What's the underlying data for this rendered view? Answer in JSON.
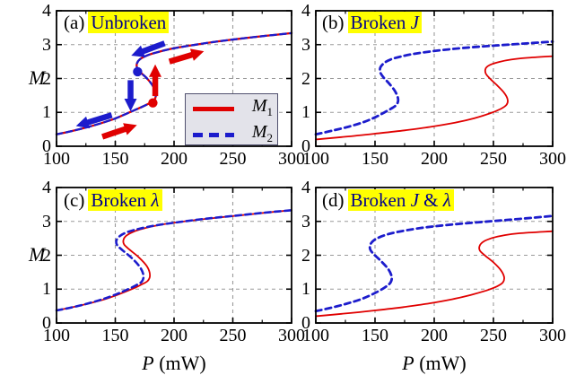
{
  "figure": {
    "bg": "#ffffff",
    "colors": {
      "m1_red": "#e00000",
      "m2_blue": "#1c1ccc",
      "title_text": "#00008b",
      "title_highlight": "#ffff00",
      "grid": "#9a9a9a",
      "axis": "#000000",
      "legend_bg": "#e3e3ea",
      "legend_border": "#50506e"
    },
    "ylabel_text": "M",
    "xlabel_parts": [
      {
        "t": "P",
        "i": true
      },
      {
        "t": " (mW)",
        "i": false
      }
    ],
    "legend": {
      "items": [
        {
          "base": "M",
          "sub": "1",
          "color": "#e00000",
          "style": "solid"
        },
        {
          "base": "M",
          "sub": "2",
          "color": "#1c1ccc",
          "style": "dashed"
        }
      ]
    }
  },
  "chart_data": [
    {
      "id": "a",
      "type": "line",
      "panel_letter": "(a)",
      "title_parts": [
        {
          "t": "Unbroken",
          "i": false
        }
      ],
      "xlim": [
        100,
        300
      ],
      "ylim": [
        0,
        4
      ],
      "xticks": [
        100,
        150,
        200,
        250,
        300
      ],
      "yticks": [
        0,
        1,
        2,
        3,
        4
      ],
      "grid_x": [
        150,
        200,
        250
      ],
      "grid_y": [
        1,
        2,
        3
      ],
      "show_legend": true,
      "series": [
        {
          "name": "M1",
          "color": "#e00000",
          "style": "solid",
          "width": 2.3,
          "points": [
            [
              100,
              0.35
            ],
            [
              112,
              0.44
            ],
            [
              125,
              0.55
            ],
            [
              138,
              0.68
            ],
            [
              150,
              0.82
            ],
            [
              160,
              0.97
            ],
            [
              170,
              1.12
            ],
            [
              178,
              1.25
            ],
            [
              183,
              1.35
            ],
            [
              184.5,
              1.55
            ],
            [
              182,
              1.78
            ],
            [
              177,
              2.0
            ],
            [
              171.5,
              2.18
            ],
            [
              168.5,
              2.32
            ],
            [
              168.5,
              2.45
            ],
            [
              171,
              2.57
            ],
            [
              177,
              2.68
            ],
            [
              186,
              2.78
            ],
            [
              198,
              2.88
            ],
            [
              213,
              2.97
            ],
            [
              232,
              3.07
            ],
            [
              255,
              3.17
            ],
            [
              278,
              3.26
            ],
            [
              300,
              3.34
            ]
          ]
        },
        {
          "name": "M2",
          "color": "#1c1ccc",
          "style": "dashed",
          "width": 2.3,
          "points": [
            [
              100,
              0.35
            ],
            [
              112,
              0.44
            ],
            [
              125,
              0.55
            ],
            [
              138,
              0.68
            ],
            [
              150,
              0.82
            ],
            [
              160,
              0.97
            ],
            [
              170,
              1.12
            ],
            [
              178,
              1.25
            ],
            [
              183,
              1.35
            ],
            [
              184.5,
              1.55
            ],
            [
              182,
              1.78
            ],
            [
              177,
              2.0
            ],
            [
              171.5,
              2.18
            ],
            [
              168.5,
              2.32
            ],
            [
              168.5,
              2.45
            ],
            [
              171,
              2.57
            ],
            [
              177,
              2.68
            ],
            [
              186,
              2.78
            ],
            [
              198,
              2.88
            ],
            [
              213,
              2.97
            ],
            [
              232,
              3.07
            ],
            [
              255,
              3.17
            ],
            [
              278,
              3.26
            ],
            [
              300,
              3.34
            ]
          ]
        }
      ],
      "markers": [
        {
          "color": "#1c1ccc",
          "P": 169,
          "M": 2.2
        },
        {
          "color": "#e00000",
          "P": 182,
          "M": 1.28
        }
      ],
      "arrows": [
        {
          "color": "#1c1ccc",
          "from": [
            192,
            3.04
          ],
          "to": [
            164,
            2.68
          ]
        },
        {
          "color": "#1c1ccc",
          "from": [
            163,
            1.95
          ],
          "to": [
            163,
            1.05
          ]
        },
        {
          "color": "#1c1ccc",
          "from": [
            147,
            0.92
          ],
          "to": [
            117,
            0.6
          ]
        },
        {
          "color": "#e00000",
          "from": [
            139,
            0.28
          ],
          "to": [
            168,
            0.62
          ]
        },
        {
          "color": "#e00000",
          "from": [
            184,
            1.48
          ],
          "to": [
            184,
            2.4
          ]
        },
        {
          "color": "#e00000",
          "from": [
            196,
            2.5
          ],
          "to": [
            225,
            2.8
          ]
        }
      ]
    },
    {
      "id": "b",
      "type": "line",
      "panel_letter": "(b)",
      "title_parts": [
        {
          "t": "Broken ",
          "i": false
        },
        {
          "t": "J",
          "i": true
        }
      ],
      "xlim": [
        100,
        300
      ],
      "ylim": [
        0,
        4
      ],
      "xticks": [
        100,
        150,
        200,
        250,
        300
      ],
      "yticks": [
        0,
        1,
        2,
        3,
        4
      ],
      "grid_x": [
        150,
        200,
        250
      ],
      "grid_y": [
        1,
        2,
        3
      ],
      "show_legend": false,
      "series": [
        {
          "name": "M1",
          "color": "#e00000",
          "style": "solid",
          "width": 1.8,
          "points": [
            [
              100,
              0.2
            ],
            [
              125,
              0.28
            ],
            [
              150,
              0.37
            ],
            [
              175,
              0.47
            ],
            [
              198,
              0.58
            ],
            [
              218,
              0.7
            ],
            [
              234,
              0.83
            ],
            [
              247,
              0.97
            ],
            [
              256,
              1.1
            ],
            [
              261,
              1.22
            ],
            [
              262,
              1.38
            ],
            [
              259,
              1.58
            ],
            [
              253,
              1.8
            ],
            [
              247,
              2.0
            ],
            [
              243.5,
              2.15
            ],
            [
              243.5,
              2.3
            ],
            [
              247,
              2.4
            ],
            [
              255,
              2.49
            ],
            [
              265,
              2.56
            ],
            [
              278,
              2.61
            ],
            [
              300,
              2.66
            ]
          ]
        },
        {
          "name": "M2",
          "color": "#1c1ccc",
          "style": "dashed",
          "width": 2.8,
          "points": [
            [
              100,
              0.35
            ],
            [
              114,
              0.46
            ],
            [
              128,
              0.58
            ],
            [
              141,
              0.72
            ],
            [
              151,
              0.87
            ],
            [
              159,
              1.02
            ],
            [
              165,
              1.14
            ],
            [
              168.5,
              1.24
            ],
            [
              169.5,
              1.4
            ],
            [
              167,
              1.62
            ],
            [
              162,
              1.85
            ],
            [
              157,
              2.04
            ],
            [
              154.5,
              2.18
            ],
            [
              154.5,
              2.32
            ],
            [
              157.5,
              2.45
            ],
            [
              163,
              2.56
            ],
            [
              172,
              2.65
            ],
            [
              185,
              2.74
            ],
            [
              202,
              2.82
            ],
            [
              224,
              2.9
            ],
            [
              250,
              2.97
            ],
            [
              275,
              3.03
            ],
            [
              300,
              3.09
            ]
          ]
        }
      ],
      "markers": [],
      "arrows": []
    },
    {
      "id": "c",
      "type": "line",
      "panel_letter": "(c)",
      "title_parts": [
        {
          "t": "Broken ",
          "i": false
        },
        {
          "t": "λ",
          "i": true
        }
      ],
      "xlim": [
        100,
        300
      ],
      "ylim": [
        0,
        4
      ],
      "xticks": [
        100,
        150,
        200,
        250,
        300
      ],
      "yticks": [
        0,
        1,
        2,
        3,
        4
      ],
      "grid_x": [
        150,
        200,
        250
      ],
      "grid_y": [
        1,
        2,
        3
      ],
      "show_legend": false,
      "series": [
        {
          "name": "M1",
          "color": "#e00000",
          "style": "solid",
          "width": 1.8,
          "points": [
            [
              100,
              0.37
            ],
            [
              114,
              0.47
            ],
            [
              128,
              0.58
            ],
            [
              142,
              0.71
            ],
            [
              154,
              0.86
            ],
            [
              164,
              1.0
            ],
            [
              172,
              1.13
            ],
            [
              177.5,
              1.24
            ],
            [
              179.5,
              1.42
            ],
            [
              177,
              1.67
            ],
            [
              170,
              1.94
            ],
            [
              162,
              2.17
            ],
            [
              157.5,
              2.32
            ],
            [
              157,
              2.46
            ],
            [
              159.5,
              2.58
            ],
            [
              165,
              2.69
            ],
            [
              174,
              2.79
            ],
            [
              187,
              2.89
            ],
            [
              204,
              2.98
            ],
            [
              226,
              3.07
            ],
            [
              251,
              3.16
            ],
            [
              276,
              3.25
            ],
            [
              300,
              3.33
            ]
          ]
        },
        {
          "name": "M2",
          "color": "#1c1ccc",
          "style": "dashed",
          "width": 2.6,
          "points": [
            [
              100,
              0.37
            ],
            [
              113,
              0.46
            ],
            [
              126,
              0.57
            ],
            [
              139,
              0.7
            ],
            [
              151,
              0.85
            ],
            [
              161,
              1.0
            ],
            [
              168,
              1.12
            ],
            [
              172.5,
              1.22
            ],
            [
              174,
              1.4
            ],
            [
              171,
              1.65
            ],
            [
              164,
              1.92
            ],
            [
              156,
              2.15
            ],
            [
              151.5,
              2.3
            ],
            [
              151,
              2.44
            ],
            [
              154,
              2.57
            ],
            [
              160,
              2.68
            ],
            [
              170,
              2.78
            ],
            [
              184,
              2.88
            ],
            [
              202,
              2.97
            ],
            [
              225,
              3.07
            ],
            [
              250,
              3.16
            ],
            [
              275,
              3.25
            ],
            [
              300,
              3.33
            ]
          ]
        }
      ],
      "markers": [],
      "arrows": []
    },
    {
      "id": "d",
      "type": "line",
      "panel_letter": "(d)",
      "title_parts": [
        {
          "t": "Broken ",
          "i": false
        },
        {
          "t": "J",
          "i": true
        },
        {
          "t": " & ",
          "i": false
        },
        {
          "t": "λ",
          "i": true
        }
      ],
      "xlim": [
        100,
        300
      ],
      "ylim": [
        0,
        4
      ],
      "xticks": [
        100,
        150,
        200,
        250,
        300
      ],
      "yticks": [
        0,
        1,
        2,
        3,
        4
      ],
      "grid_x": [
        150,
        200,
        250
      ],
      "grid_y": [
        1,
        2,
        3
      ],
      "show_legend": false,
      "series": [
        {
          "name": "M1",
          "color": "#e00000",
          "style": "solid",
          "width": 1.8,
          "points": [
            [
              100,
              0.2
            ],
            [
              125,
              0.28
            ],
            [
              150,
              0.37
            ],
            [
              174,
              0.47
            ],
            [
              196,
              0.58
            ],
            [
              215,
              0.7
            ],
            [
              231,
              0.83
            ],
            [
              244,
              0.96
            ],
            [
              253,
              1.08
            ],
            [
              258,
              1.2
            ],
            [
              259,
              1.36
            ],
            [
              256,
              1.57
            ],
            [
              250,
              1.79
            ],
            [
              243,
              1.99
            ],
            [
              238.5,
              2.14
            ],
            [
              238.5,
              2.29
            ],
            [
              242,
              2.41
            ],
            [
              249,
              2.51
            ],
            [
              259,
              2.59
            ],
            [
              272,
              2.65
            ],
            [
              300,
              2.71
            ]
          ]
        },
        {
          "name": "M2",
          "color": "#1c1ccc",
          "style": "dashed",
          "width": 2.8,
          "points": [
            [
              100,
              0.35
            ],
            [
              113,
              0.45
            ],
            [
              126,
              0.57
            ],
            [
              138,
              0.7
            ],
            [
              148,
              0.85
            ],
            [
              156,
              1.0
            ],
            [
              161,
              1.12
            ],
            [
              163.5,
              1.22
            ],
            [
              164,
              1.38
            ],
            [
              161,
              1.6
            ],
            [
              155,
              1.83
            ],
            [
              149,
              2.03
            ],
            [
              146,
              2.17
            ],
            [
              146,
              2.31
            ],
            [
              149,
              2.44
            ],
            [
              155,
              2.55
            ],
            [
              164,
              2.65
            ],
            [
              177,
              2.74
            ],
            [
              194,
              2.83
            ],
            [
              216,
              2.91
            ],
            [
              243,
              2.99
            ],
            [
              271,
              3.07
            ],
            [
              300,
              3.16
            ]
          ]
        }
      ],
      "markers": [],
      "arrows": []
    }
  ]
}
